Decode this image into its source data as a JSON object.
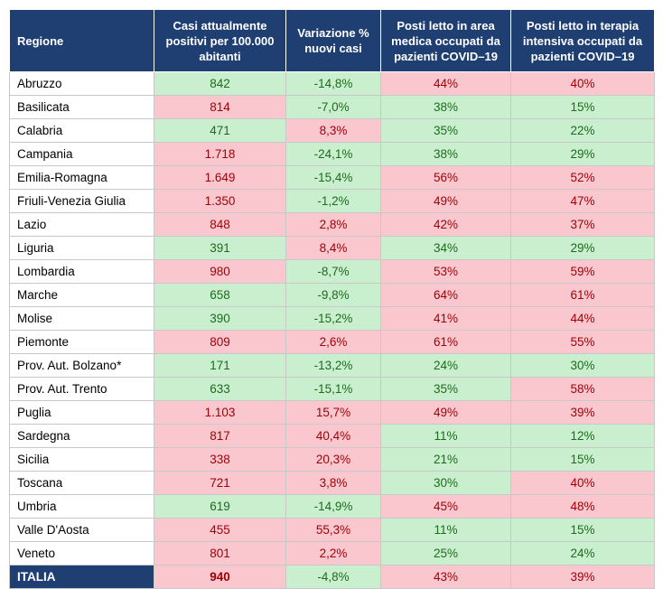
{
  "headers": [
    "Regione",
    "Casi attualmente positivi per 100.000 abitanti",
    "Variazione % nuovi casi",
    "Posti letto in area medica occupati da pazienti COVID–19",
    "Posti letto in terapia intensiva occupati da pazienti COVID–19"
  ],
  "colors": {
    "header_bg": "#1f3f73",
    "green_bg": "#c9efce",
    "red_bg": "#fbc7ce",
    "green_text": "#1e6b1e",
    "red_text": "#9c0006"
  },
  "rows": [
    {
      "region": "Abruzzo",
      "cells": [
        {
          "v": "842",
          "c": "green"
        },
        {
          "v": "-14,8%",
          "c": "green"
        },
        {
          "v": "44%",
          "c": "red"
        },
        {
          "v": "40%",
          "c": "red"
        }
      ]
    },
    {
      "region": "Basilicata",
      "cells": [
        {
          "v": "814",
          "c": "red"
        },
        {
          "v": "-7,0%",
          "c": "green"
        },
        {
          "v": "38%",
          "c": "green"
        },
        {
          "v": "15%",
          "c": "green"
        }
      ]
    },
    {
      "region": "Calabria",
      "cells": [
        {
          "v": "471",
          "c": "green"
        },
        {
          "v": "8,3%",
          "c": "red"
        },
        {
          "v": "35%",
          "c": "green"
        },
        {
          "v": "22%",
          "c": "green"
        }
      ]
    },
    {
      "region": "Campania",
      "cells": [
        {
          "v": "1.718",
          "c": "red"
        },
        {
          "v": "-24,1%",
          "c": "green"
        },
        {
          "v": "38%",
          "c": "green"
        },
        {
          "v": "29%",
          "c": "green"
        }
      ]
    },
    {
      "region": "Emilia-Romagna",
      "cells": [
        {
          "v": "1.649",
          "c": "red"
        },
        {
          "v": "-15,4%",
          "c": "green"
        },
        {
          "v": "56%",
          "c": "red"
        },
        {
          "v": "52%",
          "c": "red"
        }
      ]
    },
    {
      "region": "Friuli-Venezia Giulia",
      "cells": [
        {
          "v": "1.350",
          "c": "red"
        },
        {
          "v": "-1,2%",
          "c": "green"
        },
        {
          "v": "49%",
          "c": "red"
        },
        {
          "v": "47%",
          "c": "red"
        }
      ]
    },
    {
      "region": "Lazio",
      "cells": [
        {
          "v": "848",
          "c": "red"
        },
        {
          "v": "2,8%",
          "c": "red"
        },
        {
          "v": "42%",
          "c": "red"
        },
        {
          "v": "37%",
          "c": "red"
        }
      ]
    },
    {
      "region": "Liguria",
      "cells": [
        {
          "v": "391",
          "c": "green"
        },
        {
          "v": "8,4%",
          "c": "red"
        },
        {
          "v": "34%",
          "c": "green"
        },
        {
          "v": "29%",
          "c": "green"
        }
      ]
    },
    {
      "region": "Lombardia",
      "cells": [
        {
          "v": "980",
          "c": "red"
        },
        {
          "v": "-8,7%",
          "c": "green"
        },
        {
          "v": "53%",
          "c": "red"
        },
        {
          "v": "59%",
          "c": "red"
        }
      ]
    },
    {
      "region": "Marche",
      "cells": [
        {
          "v": "658",
          "c": "green"
        },
        {
          "v": "-9,8%",
          "c": "green"
        },
        {
          "v": "64%",
          "c": "red"
        },
        {
          "v": "61%",
          "c": "red"
        }
      ]
    },
    {
      "region": "Molise",
      "cells": [
        {
          "v": "390",
          "c": "green"
        },
        {
          "v": "-15,2%",
          "c": "green"
        },
        {
          "v": "41%",
          "c": "red"
        },
        {
          "v": "44%",
          "c": "red"
        }
      ]
    },
    {
      "region": "Piemonte",
      "cells": [
        {
          "v": "809",
          "c": "red"
        },
        {
          "v": "2,6%",
          "c": "red"
        },
        {
          "v": "61%",
          "c": "red"
        },
        {
          "v": "55%",
          "c": "red"
        }
      ]
    },
    {
      "region": "Prov. Aut. Bolzano*",
      "cells": [
        {
          "v": "171",
          "c": "green"
        },
        {
          "v": "-13,2%",
          "c": "green"
        },
        {
          "v": "24%",
          "c": "green"
        },
        {
          "v": "30%",
          "c": "green"
        }
      ]
    },
    {
      "region": "Prov. Aut. Trento",
      "cells": [
        {
          "v": "633",
          "c": "green"
        },
        {
          "v": "-15,1%",
          "c": "green"
        },
        {
          "v": "35%",
          "c": "green"
        },
        {
          "v": "58%",
          "c": "red"
        }
      ]
    },
    {
      "region": "Puglia",
      "cells": [
        {
          "v": "1.103",
          "c": "red"
        },
        {
          "v": "15,7%",
          "c": "red"
        },
        {
          "v": "49%",
          "c": "red"
        },
        {
          "v": "39%",
          "c": "red"
        }
      ]
    },
    {
      "region": "Sardegna",
      "cells": [
        {
          "v": "817",
          "c": "red"
        },
        {
          "v": "40,4%",
          "c": "red"
        },
        {
          "v": "11%",
          "c": "green"
        },
        {
          "v": "12%",
          "c": "green"
        }
      ]
    },
    {
      "region": "Sicilia",
      "cells": [
        {
          "v": "338",
          "c": "red"
        },
        {
          "v": "20,3%",
          "c": "red"
        },
        {
          "v": "21%",
          "c": "green"
        },
        {
          "v": "15%",
          "c": "green"
        }
      ]
    },
    {
      "region": "Toscana",
      "cells": [
        {
          "v": "721",
          "c": "red"
        },
        {
          "v": "3,8%",
          "c": "red"
        },
        {
          "v": "30%",
          "c": "green"
        },
        {
          "v": "40%",
          "c": "red"
        }
      ]
    },
    {
      "region": "Umbria",
      "cells": [
        {
          "v": "619",
          "c": "green"
        },
        {
          "v": "-14,9%",
          "c": "green"
        },
        {
          "v": "45%",
          "c": "red"
        },
        {
          "v": "48%",
          "c": "red"
        }
      ]
    },
    {
      "region": "Valle D'Aosta",
      "cells": [
        {
          "v": "455",
          "c": "red"
        },
        {
          "v": "55,3%",
          "c": "red"
        },
        {
          "v": "11%",
          "c": "green"
        },
        {
          "v": "15%",
          "c": "green"
        }
      ]
    },
    {
      "region": "Veneto",
      "cells": [
        {
          "v": "801",
          "c": "red"
        },
        {
          "v": "2,2%",
          "c": "red"
        },
        {
          "v": "25%",
          "c": "green"
        },
        {
          "v": "24%",
          "c": "green"
        }
      ]
    }
  ],
  "total": {
    "region": "ITALIA",
    "cells": [
      {
        "v": "940",
        "c": "red"
      },
      {
        "v": "-4,8%",
        "c": "green"
      },
      {
        "v": "43%",
        "c": "red"
      },
      {
        "v": "39%",
        "c": "red"
      }
    ]
  }
}
